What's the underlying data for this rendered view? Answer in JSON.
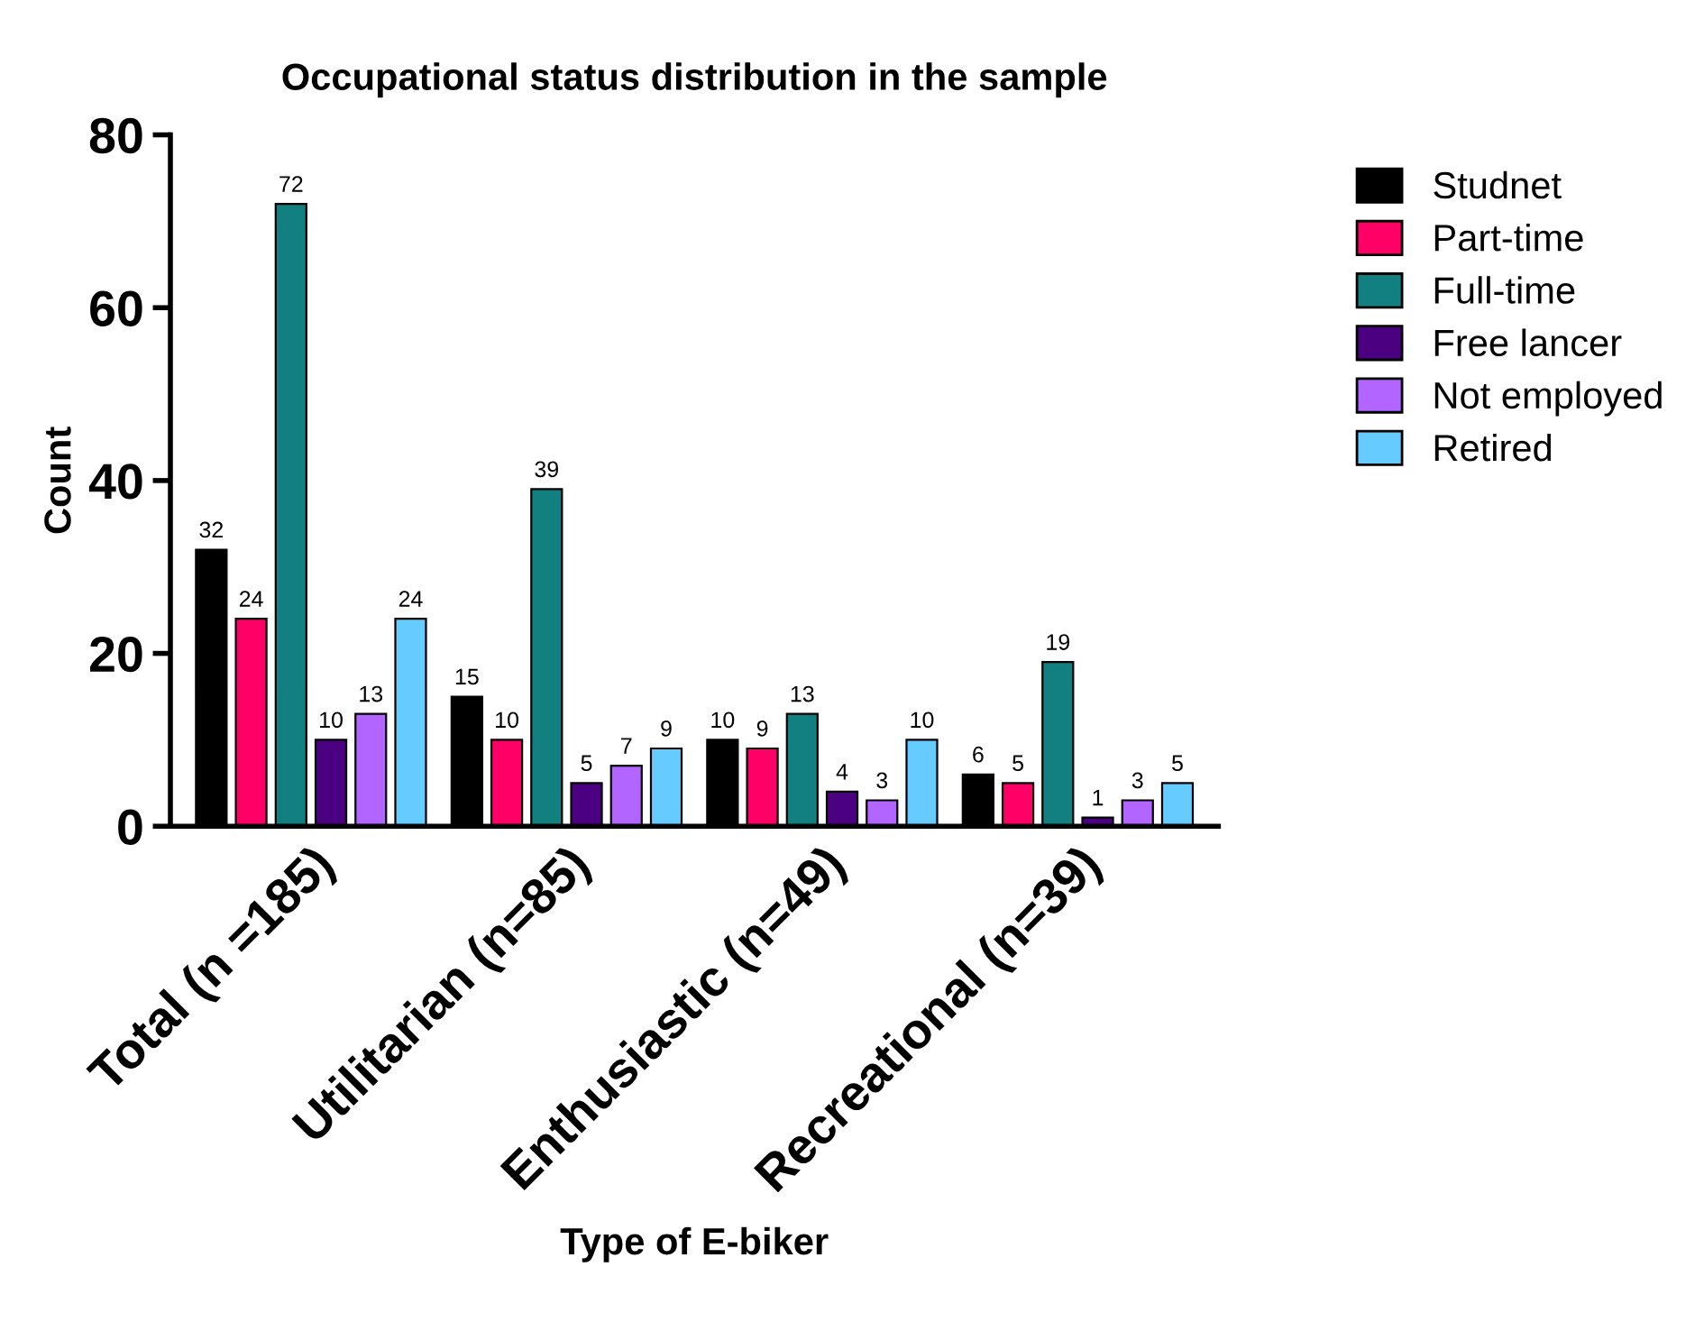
{
  "chart_data": {
    "type": "bar",
    "title": "Occupational status distribution in the sample",
    "xlabel": "Type of E-biker",
    "ylabel": "Count",
    "categories": [
      "Total (n =185)",
      "Utilitarian (n=85)",
      "Enthusiastic (n=49)",
      "Recreational (n=39)"
    ],
    "series": [
      {
        "name": "Studnet",
        "color": "#000000",
        "values": [
          32,
          15,
          10,
          6
        ]
      },
      {
        "name": "Part-time",
        "color": "#ff0066",
        "values": [
          24,
          10,
          9,
          5
        ]
      },
      {
        "name": "Full-time",
        "color": "#128080",
        "values": [
          72,
          39,
          13,
          19
        ]
      },
      {
        "name": "Free lancer",
        "color": "#4b0082",
        "values": [
          10,
          5,
          4,
          1
        ]
      },
      {
        "name": "Not employed",
        "color": "#b266ff",
        "values": [
          13,
          7,
          3,
          3
        ]
      },
      {
        "name": "Retired",
        "color": "#66ccff",
        "values": [
          24,
          9,
          10,
          5
        ]
      }
    ],
    "ylim": [
      0,
      80
    ],
    "yticks": [
      0,
      20,
      40,
      60,
      80
    ],
    "grid": false,
    "legend": "top right",
    "data_labels": true
  }
}
